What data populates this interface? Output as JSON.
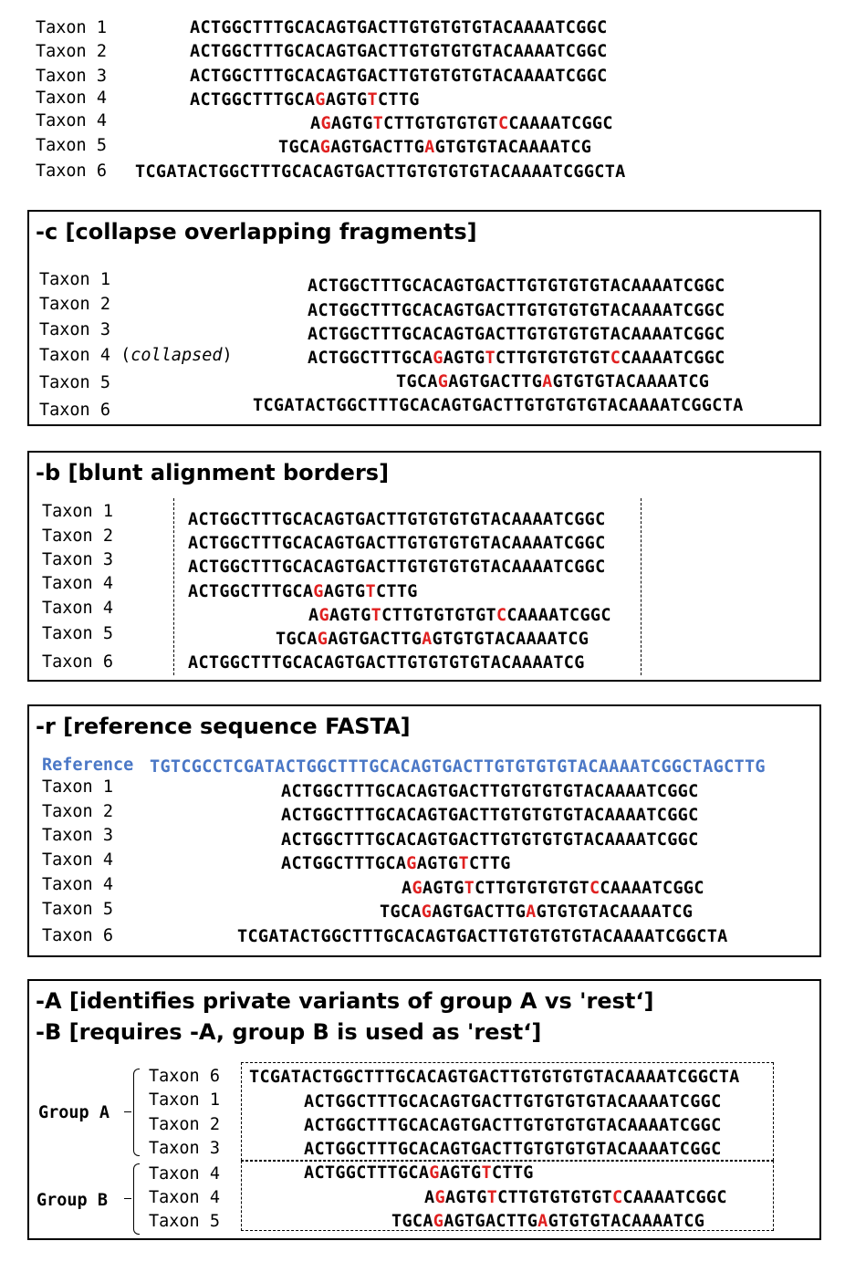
{
  "top": {
    "rows": [
      {
        "label": "Taxon 1",
        "parts": [
          {
            "t": "ACTGGCTTTGCACAGTGACTTGTGTGTGTACAAAATCGGC"
          }
        ]
      },
      {
        "label": "Taxon 2",
        "parts": [
          {
            "t": "ACTGGCTTTGCACAGTGACTTGTGTGTGTACAAAATCGGC"
          }
        ]
      },
      {
        "label": "Taxon 3",
        "parts": [
          {
            "t": "ACTGGCTTTGCACAGTGACTTGTGTGTGTACAAAATCGGC"
          }
        ]
      },
      {
        "label": "Taxon 4",
        "parts": [
          {
            "t": "ACTGGCTTTGCA"
          },
          {
            "t": "G",
            "r": 1
          },
          {
            "t": "AGTG"
          },
          {
            "t": "T",
            "r": 1
          },
          {
            "t": "CTTG"
          }
        ]
      },
      {
        "label": "Taxon 4",
        "parts": [
          {
            "t": "A"
          },
          {
            "t": "G",
            "r": 1
          },
          {
            "t": "AGTG"
          },
          {
            "t": "T",
            "r": 1
          },
          {
            "t": "CTTGTGTGTGT"
          },
          {
            "t": "C",
            "r": 1
          },
          {
            "t": "CAAAATCGGC"
          }
        ]
      },
      {
        "label": "Taxon 5",
        "parts": [
          {
            "t": "TGCA"
          },
          {
            "t": "G",
            "r": 1
          },
          {
            "t": "AGTGACTTG"
          },
          {
            "t": "A",
            "r": 1
          },
          {
            "t": "GTGTGTACAAAATCG"
          }
        ]
      },
      {
        "label": "Taxon 6",
        "parts": [
          {
            "t": "TCGATACTGGCTTTGCACAGTGACTTGTGTGTGTACAAAATCGGCTA"
          }
        ]
      }
    ]
  },
  "panel_c": {
    "title": "-c [collapse overlapping fragments]",
    "collapsed_note": "collapsed",
    "rows": [
      {
        "label": "Taxon 1",
        "parts": [
          {
            "t": "ACTGGCTTTGCACAGTGACTTGTGTGTGTACAAAATCGGC"
          }
        ]
      },
      {
        "label": "Taxon 2",
        "parts": [
          {
            "t": "ACTGGCTTTGCACAGTGACTTGTGTGTGTACAAAATCGGC"
          }
        ]
      },
      {
        "label": "Taxon 3",
        "parts": [
          {
            "t": "ACTGGCTTTGCACAGTGACTTGTGTGTGTACAAAATCGGC"
          }
        ]
      },
      {
        "label": "Taxon 4",
        "parts": [
          {
            "t": "ACTGGCTTTGCA"
          },
          {
            "t": "G",
            "r": 1
          },
          {
            "t": "AGTG"
          },
          {
            "t": "T",
            "r": 1
          },
          {
            "t": "CTTGTGTGTGT"
          },
          {
            "t": "C",
            "r": 1
          },
          {
            "t": "CAAAATCGGC"
          }
        ]
      },
      {
        "label": "Taxon 5",
        "parts": [
          {
            "t": "TGCA"
          },
          {
            "t": "G",
            "r": 1
          },
          {
            "t": "AGTGACTTG"
          },
          {
            "t": "A",
            "r": 1
          },
          {
            "t": "GTGTGTACAAAATCG"
          }
        ]
      },
      {
        "label": "Taxon 6",
        "parts": [
          {
            "t": "TCGATACTGGCTTTGCACAGTGACTTGTGTGTGTACAAAATCGGCTA"
          }
        ]
      }
    ]
  },
  "panel_b": {
    "title": "-b [blunt alignment borders]",
    "rows": [
      {
        "label": "Taxon 1",
        "parts": [
          {
            "t": "ACTGGCTTTGCACAGTGACTTGTGTGTGTACAAAATCGGC"
          }
        ]
      },
      {
        "label": "Taxon 2",
        "parts": [
          {
            "t": "ACTGGCTTTGCACAGTGACTTGTGTGTGTACAAAATCGGC"
          }
        ]
      },
      {
        "label": "Taxon 3",
        "parts": [
          {
            "t": "ACTGGCTTTGCACAGTGACTTGTGTGTGTACAAAATCGGC"
          }
        ]
      },
      {
        "label": "Taxon 4",
        "parts": [
          {
            "t": "ACTGGCTTTGCA"
          },
          {
            "t": "G",
            "r": 1
          },
          {
            "t": "AGTG"
          },
          {
            "t": "T",
            "r": 1
          },
          {
            "t": "CTTG"
          }
        ]
      },
      {
        "label": "Taxon 4",
        "parts": [
          {
            "t": "A"
          },
          {
            "t": "G",
            "r": 1
          },
          {
            "t": "AGTG"
          },
          {
            "t": "T",
            "r": 1
          },
          {
            "t": "CTTGTGTGTGT"
          },
          {
            "t": "C",
            "r": 1
          },
          {
            "t": "CAAAATCGGC"
          }
        ]
      },
      {
        "label": "Taxon 5",
        "parts": [
          {
            "t": "TGCA"
          },
          {
            "t": "G",
            "r": 1
          },
          {
            "t": "AGTGACTTG"
          },
          {
            "t": "A",
            "r": 1
          },
          {
            "t": "GTGTGTACAAAATCG"
          }
        ]
      },
      {
        "label": "Taxon 6",
        "parts": [
          {
            "t": "ACTGGCTTTGCACAGTGACTTGTGTGTGTACAAAATCG"
          }
        ]
      }
    ]
  },
  "panel_r": {
    "title": "-r [reference sequence FASTA]",
    "reference_label": "Reference",
    "reference_seq": "TGTCGCCTCGATACTGGCTTTGCACAGTGACTTGTGTGTGTACAAAATCGGCTAGCTTG",
    "rows": [
      {
        "label": "Taxon 1",
        "parts": [
          {
            "t": "ACTGGCTTTGCACAGTGACTTGTGTGTGTACAAAATCGGC"
          }
        ]
      },
      {
        "label": "Taxon 2",
        "parts": [
          {
            "t": "ACTGGCTTTGCACAGTGACTTGTGTGTGTACAAAATCGGC"
          }
        ]
      },
      {
        "label": "Taxon 3",
        "parts": [
          {
            "t": "ACTGGCTTTGCACAGTGACTTGTGTGTGTACAAAATCGGC"
          }
        ]
      },
      {
        "label": "Taxon 4",
        "parts": [
          {
            "t": "ACTGGCTTTGCA"
          },
          {
            "t": "G",
            "r": 1
          },
          {
            "t": "AGTG"
          },
          {
            "t": "T",
            "r": 1
          },
          {
            "t": "CTTG"
          }
        ]
      },
      {
        "label": "Taxon 4",
        "parts": [
          {
            "t": "A"
          },
          {
            "t": "G",
            "r": 1
          },
          {
            "t": "AGTG"
          },
          {
            "t": "T",
            "r": 1
          },
          {
            "t": "CTTGTGTGTGT"
          },
          {
            "t": "C",
            "r": 1
          },
          {
            "t": "CAAAATCGGC"
          }
        ]
      },
      {
        "label": "Taxon 5",
        "parts": [
          {
            "t": "TGCA"
          },
          {
            "t": "G",
            "r": 1
          },
          {
            "t": "AGTGACTTG"
          },
          {
            "t": "A",
            "r": 1
          },
          {
            "t": "GTGTGTACAAAATCG"
          }
        ]
      },
      {
        "label": "Taxon 6",
        "parts": [
          {
            "t": "TCGATACTGGCTTTGCACAGTGACTTGTGTGTGTACAAAATCGGCTA"
          }
        ]
      }
    ]
  },
  "panel_ab": {
    "title_a": "-A [identifies private variants of group A vs 'rest‘]",
    "title_b": "-B [requires -A, group B is used as 'rest‘]",
    "group_a_label": "Group A",
    "group_b_label": "Group B",
    "rows": [
      {
        "label": "Taxon 6",
        "parts": [
          {
            "t": "TCGATACTGGCTTTGCACAGTGACTTGTGTGTGTACAAAATCGGCTA"
          }
        ]
      },
      {
        "label": "Taxon 1",
        "parts": [
          {
            "t": "ACTGGCTTTGCACAGTGACTTGTGTGTGTACAAAATCGGC"
          }
        ]
      },
      {
        "label": "Taxon 2",
        "parts": [
          {
            "t": "ACTGGCTTTGCACAGTGACTTGTGTGTGTACAAAATCGGC"
          }
        ]
      },
      {
        "label": "Taxon 3",
        "parts": [
          {
            "t": "ACTGGCTTTGCACAGTGACTTGTGTGTGTACAAAATCGGC"
          }
        ]
      },
      {
        "label": "Taxon 4",
        "parts": [
          {
            "t": "ACTGGCTTTGCA"
          },
          {
            "t": "G",
            "r": 1
          },
          {
            "t": "AGTG"
          },
          {
            "t": "T",
            "r": 1
          },
          {
            "t": "CTTG"
          }
        ]
      },
      {
        "label": "Taxon 4",
        "parts": [
          {
            "t": "A"
          },
          {
            "t": "G",
            "r": 1
          },
          {
            "t": "AGTG"
          },
          {
            "t": "T",
            "r": 1
          },
          {
            "t": "CTTGTGTGTGT"
          },
          {
            "t": "C",
            "r": 1
          },
          {
            "t": "CAAAATCGGC"
          }
        ]
      },
      {
        "label": "Taxon 5",
        "parts": [
          {
            "t": "TGCA"
          },
          {
            "t": "G",
            "r": 1
          },
          {
            "t": "AGTGACTTG"
          },
          {
            "t": "A",
            "r": 1
          },
          {
            "t": "GTGTGTACAAAATCG"
          }
        ]
      }
    ]
  },
  "colors": {
    "variant": "#e02020",
    "reference": "#4a77c6",
    "text": "#000000"
  }
}
